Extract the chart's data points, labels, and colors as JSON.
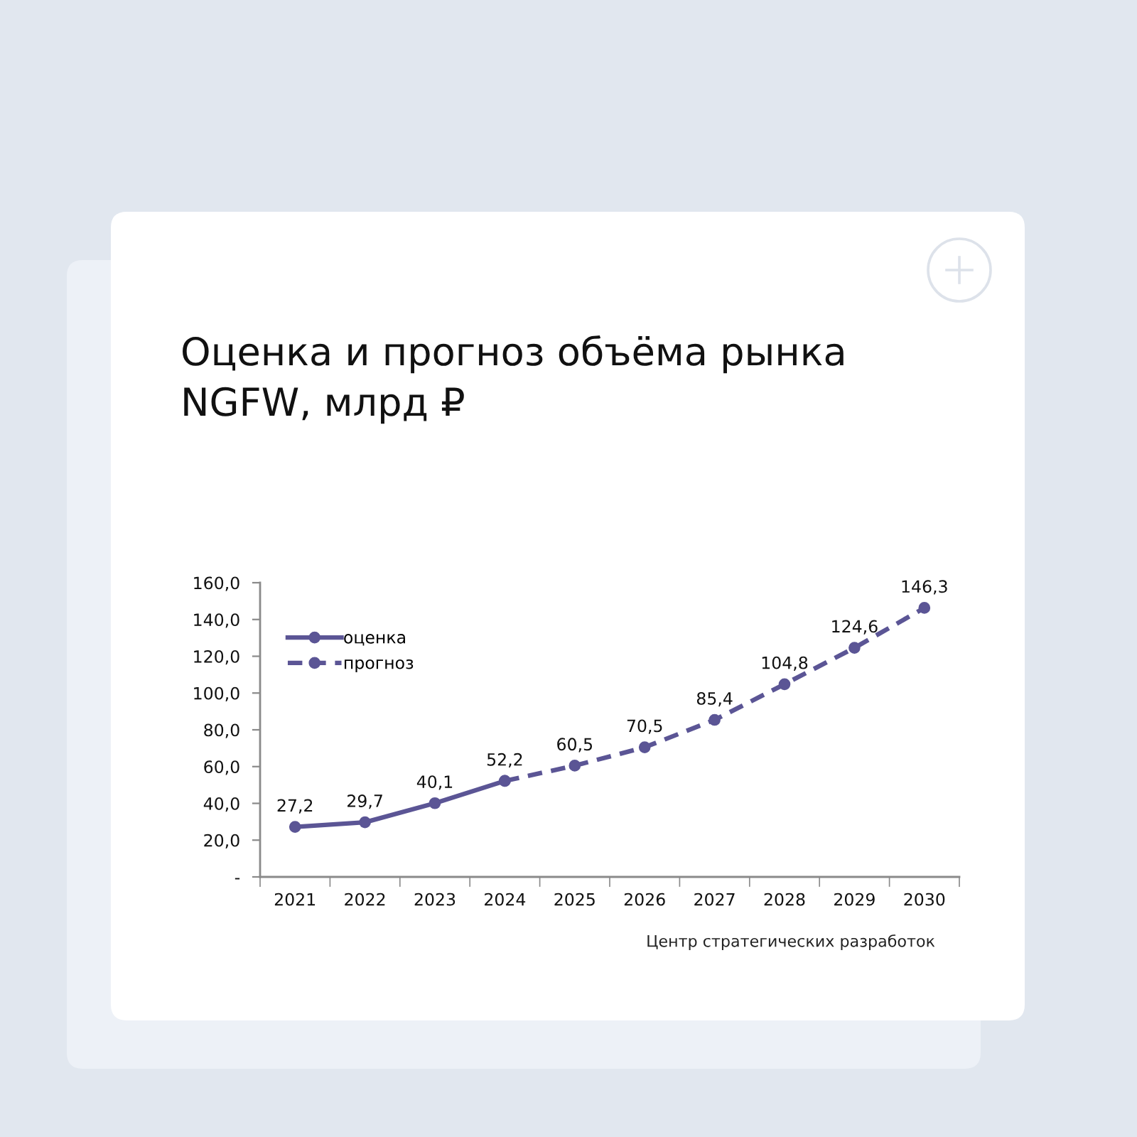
{
  "chart_data": {
    "type": "line",
    "title": "Оценка и прогноз объёма рынка\nNGFW, млрд ₽",
    "categories": [
      "2021",
      "2022",
      "2023",
      "2024",
      "2025",
      "2026",
      "2027",
      "2028",
      "2029",
      "2030"
    ],
    "series": [
      {
        "name": "оценка",
        "color": "#5b5595",
        "line_style": "solid",
        "marker": "circle",
        "values": [
          27.2,
          29.7,
          40.1,
          52.2,
          null,
          null,
          null,
          null,
          null,
          null
        ],
        "value_labels": [
          "27,2",
          "29,7",
          "40,1",
          "52,2",
          null,
          null,
          null,
          null,
          null,
          null
        ]
      },
      {
        "name": "прогноз",
        "color": "#5b5595",
        "line_style": "dashed",
        "marker": "circle",
        "values": [
          null,
          null,
          null,
          52.2,
          60.5,
          70.5,
          85.4,
          104.8,
          124.6,
          146.3
        ],
        "value_labels": [
          null,
          null,
          null,
          null,
          "60,5",
          "70,5",
          "85,4",
          "104,8",
          "124,6",
          "146,3"
        ]
      }
    ],
    "ylim": [
      0,
      160
    ],
    "yticks": [
      {
        "value": 0,
        "label": "-"
      },
      {
        "value": 20,
        "label": "20,0"
      },
      {
        "value": 40,
        "label": "40,0"
      },
      {
        "value": 60,
        "label": "60,0"
      },
      {
        "value": 80,
        "label": "80,0"
      },
      {
        "value": 100,
        "label": "100,0"
      },
      {
        "value": 120,
        "label": "120,0"
      },
      {
        "value": 140,
        "label": "140,0"
      },
      {
        "value": 160,
        "label": "160,0"
      }
    ],
    "legend": "top left",
    "grid": false,
    "annotations": [
      "Центр стратегических разработок"
    ]
  }
}
